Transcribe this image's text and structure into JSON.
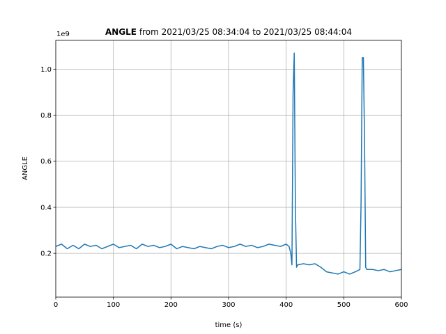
{
  "chart_data": {
    "type": "line",
    "title_bold": "ANGLE",
    "title_rest": " from 2021/03/25 08:34:04 to 2021/03/25 08:44:04",
    "xlabel": "time (s)",
    "ylabel": "ANGLE",
    "y_offset_label": "1e9",
    "xlim": [
      0,
      600
    ],
    "ylim": [
      0.01,
      1.125
    ],
    "xticks": [
      0,
      100,
      200,
      300,
      400,
      500,
      600
    ],
    "xtick_labels": [
      "0",
      "100",
      "200",
      "300",
      "400",
      "500",
      "600"
    ],
    "yticks": [
      0.2,
      0.4,
      0.6,
      0.8,
      1.0
    ],
    "ytick_labels": [
      "0.2",
      "0.4",
      "0.6",
      "0.8",
      "1.0"
    ],
    "grid": true,
    "series_color": "#1f77b4",
    "series": [
      {
        "name": "",
        "x": [
          0,
          10,
          20,
          30,
          40,
          50,
          60,
          70,
          80,
          90,
          100,
          110,
          120,
          130,
          140,
          150,
          160,
          170,
          180,
          190,
          200,
          210,
          220,
          230,
          240,
          250,
          260,
          270,
          280,
          290,
          300,
          310,
          320,
          330,
          340,
          350,
          360,
          370,
          380,
          390,
          400,
          405,
          408,
          410,
          412,
          414,
          416,
          418,
          420,
          430,
          440,
          450,
          460,
          470,
          480,
          490,
          500,
          510,
          520,
          528,
          530,
          532,
          534,
          536,
          538,
          540,
          550,
          560,
          570,
          580,
          590,
          600
        ],
        "y": [
          0.23,
          0.24,
          0.22,
          0.235,
          0.22,
          0.24,
          0.23,
          0.235,
          0.22,
          0.23,
          0.24,
          0.225,
          0.23,
          0.235,
          0.22,
          0.24,
          0.23,
          0.235,
          0.225,
          0.23,
          0.24,
          0.22,
          0.23,
          0.225,
          0.22,
          0.23,
          0.225,
          0.22,
          0.23,
          0.235,
          0.225,
          0.23,
          0.24,
          0.23,
          0.235,
          0.225,
          0.23,
          0.24,
          0.235,
          0.23,
          0.24,
          0.23,
          0.2,
          0.15,
          0.9,
          1.07,
          0.4,
          0.14,
          0.15,
          0.155,
          0.15,
          0.155,
          0.14,
          0.12,
          0.115,
          0.11,
          0.12,
          0.11,
          0.12,
          0.13,
          0.42,
          1.05,
          1.05,
          0.7,
          0.14,
          0.13,
          0.13,
          0.125,
          0.13,
          0.12,
          0.125,
          0.13
        ]
      }
    ]
  }
}
